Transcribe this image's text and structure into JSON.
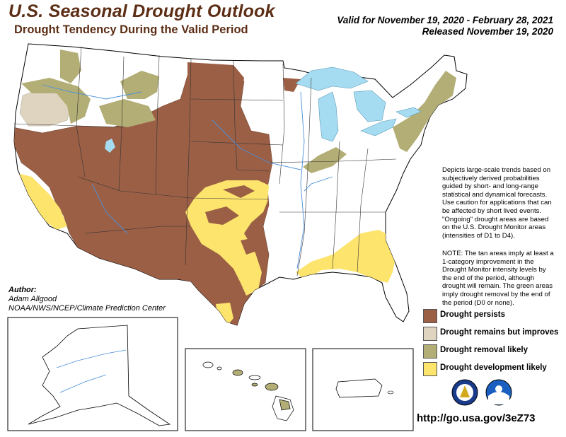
{
  "header": {
    "title": "U.S. Seasonal Drought Outlook",
    "subtitle": "Drought Tendency During the Valid Period",
    "valid": "Valid for November 19, 2020 - February 28, 2021",
    "released": "Released November 19, 2020"
  },
  "description": "Depicts large-scale trends based on subjectively derived probabilities guided by short- and long-range statistical and dynamical forecasts. Use caution for applications that can be affected by short lived events. \"Ongoing\" drought areas are based on the U.S. Drought Monitor areas (intensities of D1 to D4).",
  "note": "NOTE: The tan areas imply at least a 1-category improvement in the Drought Monitor intensity levels by the end of the period, although drought will remain. The green areas imply drought removal by the end of the period (D0 or none).",
  "author": {
    "label": "Author:",
    "name": "Adam Allgood",
    "org": "NOAA/NWS/NCEP/Climate Prediction Center"
  },
  "legend": [
    {
      "label": "Drought persists",
      "color": "#9b5f46"
    },
    {
      "label": "Drought remains but improves",
      "color": "#ded4c0"
    },
    {
      "label": "Drought removal likely",
      "color": "#b3ae76"
    },
    {
      "label": "Drought development likely",
      "color": "#fde46d"
    }
  ],
  "colors": {
    "persist": "#9b5f46",
    "improve": "#ded4c0",
    "removal": "#b3ae76",
    "develop": "#fde46d",
    "water": "#a6dcf2",
    "title": "#5c2e16"
  },
  "insets": [
    "Alaska",
    "Hawaii",
    "Puerto Rico"
  ],
  "logos": [
    "noaa-nws-logo",
    "noaa-logo"
  ],
  "url": "http://go.usa.gov/3eZ73"
}
